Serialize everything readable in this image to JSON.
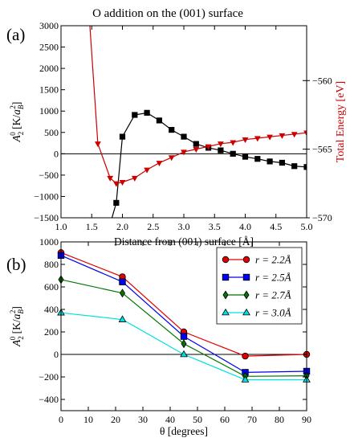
{
  "chart_data": [
    {
      "panel": "(a)",
      "type": "line",
      "title": "O addition on the (001) surface",
      "xlabel": "Distance from (001) surface [Å]",
      "ylabel_left": "A20 [K/aB2]",
      "ylabel_right": "Total Energy [eV]",
      "xlim": [
        1.0,
        5.0
      ],
      "ylim_left": [
        -1500,
        3000
      ],
      "ylim_right": [
        -570,
        -556
      ],
      "xticks": [
        "1.0",
        "1.5",
        "2.0",
        "2.5",
        "3.0",
        "3.5",
        "4.0",
        "4.5",
        "5.0"
      ],
      "yticks_left": [
        "−1500",
        "−1000",
        "−500",
        "0",
        "500",
        "1000",
        "1500",
        "2000",
        "2500",
        "3000"
      ],
      "yticks_right": [
        "−570",
        "−565",
        "−560"
      ],
      "grid": false,
      "colors": {
        "A20": "#000000",
        "energy": "#cc0000"
      },
      "series": [
        {
          "axis": "left",
          "marker": "square",
          "color": "#000000",
          "x": [
            1.8,
            1.9,
            2.0,
            2.2,
            2.4,
            2.6,
            2.8,
            3.0,
            3.2,
            3.4,
            3.6,
            3.8,
            4.0,
            4.2,
            4.4,
            4.6,
            4.8,
            5.0
          ],
          "y": [
            -1650,
            -1150,
            400,
            910,
            960,
            780,
            560,
            400,
            230,
            140,
            80,
            0,
            -70,
            -120,
            -180,
            -210,
            -290,
            -310
          ],
          "steep_line_x": [
            1.8,
            1.71
          ],
          "steep_line_y": [
            -1650,
            -4000
          ]
        },
        {
          "axis": "right",
          "marker": "triangle-down",
          "color": "#cc0000",
          "x": [
            1.6,
            1.8,
            1.9,
            2.0,
            2.2,
            2.4,
            2.6,
            2.8,
            3.0,
            3.2,
            3.4,
            3.6,
            3.8,
            4.0,
            4.2,
            4.4,
            4.6,
            4.8,
            5.0
          ],
          "y": [
            -564.6,
            -567.1,
            -567.5,
            -567.4,
            -567.1,
            -566.5,
            -566.0,
            -565.6,
            -565.2,
            -565.0,
            -564.8,
            -564.6,
            -564.5,
            -564.3,
            -564.2,
            -564.1,
            -564.0,
            -563.9,
            -563.8
          ],
          "steep_line_x": [
            1.47,
            1.6
          ],
          "steep_line_y": [
            -556,
            -564.6
          ]
        }
      ]
    },
    {
      "panel": "(b)",
      "type": "line",
      "xlabel": "θ [degrees]",
      "ylabel": "A20 [K/aB2]",
      "xlim": [
        0,
        90
      ],
      "ylim": [
        -500,
        1000
      ],
      "xticks": [
        "0",
        "10",
        "20",
        "30",
        "40",
        "50",
        "60",
        "70",
        "80",
        "90"
      ],
      "yticks": [
        "−400",
        "−200",
        "0",
        "200",
        "400",
        "600",
        "800",
        "1000"
      ],
      "grid": false,
      "legend": "top-right",
      "categories": [
        0,
        22.5,
        45,
        67.5,
        90
      ],
      "series": [
        {
          "name": "r = 2.2Å",
          "marker": "circle",
          "color": "#e00000",
          "values": [
            905,
            690,
            200,
            -15,
            0
          ]
        },
        {
          "name": "r = 2.5Å",
          "marker": "square",
          "color": "#0000ee",
          "values": [
            880,
            645,
            160,
            -160,
            -150
          ]
        },
        {
          "name": "r = 2.7Å",
          "marker": "diamond",
          "color": "#007700",
          "values": [
            665,
            545,
            95,
            -195,
            -190
          ]
        },
        {
          "name": "r = 3.0Å",
          "marker": "triangle",
          "color": "#00e0e0",
          "values": [
            370,
            310,
            0,
            -225,
            -225
          ]
        }
      ]
    }
  ]
}
